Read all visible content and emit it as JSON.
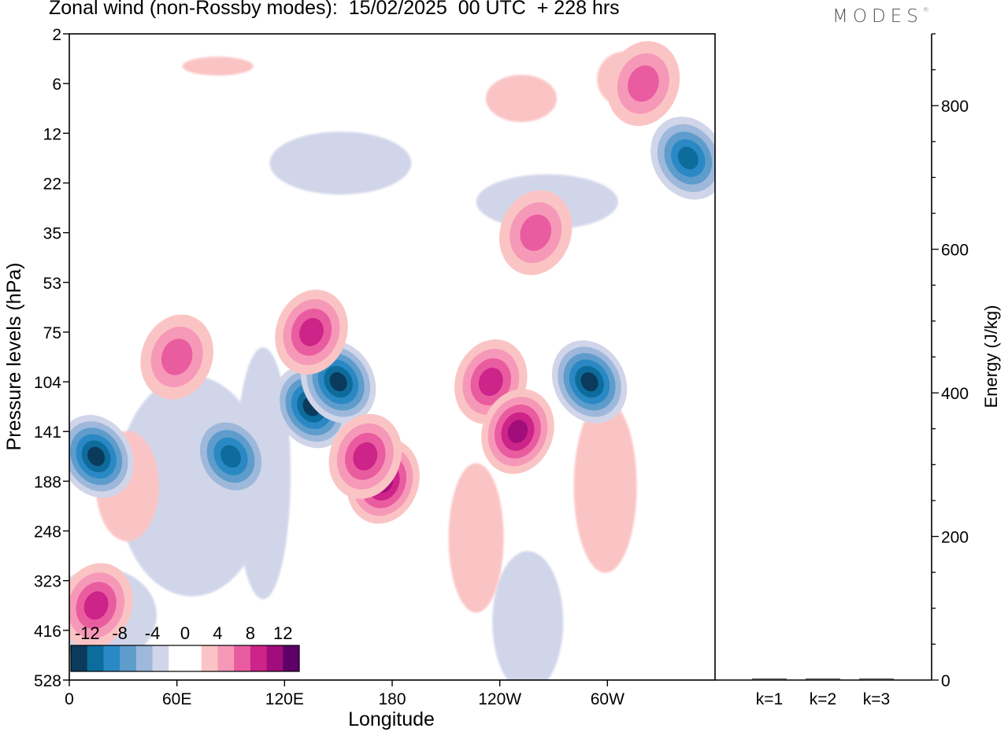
{
  "title": "Zonal wind (non-Rossby modes):  15/02/2025  00 UTC  + 228 hrs",
  "logo": "MODES",
  "left_panel": {
    "ylabel": "Pressure levels (hPa)",
    "xlabel": "Longitude"
  },
  "right_panel": {
    "ylabel": "Energy (J/kg)"
  },
  "colorbar": {
    "labels": [
      "-12",
      "-8",
      "-4",
      "0",
      "4",
      "8",
      "12"
    ],
    "colors": [
      "#0a3a5c",
      "#0e6c9c",
      "#2a89c4",
      "#5e9ccc",
      "#9db8da",
      "#d1d5e9",
      "#ffffff",
      "#ffffff",
      "#fbc4c4",
      "#f699b8",
      "#ea5ca0",
      "#cc2488",
      "#a10d7a",
      "#5e0068"
    ]
  },
  "chart_data": [
    {
      "type": "heatmap",
      "title": "Zonal wind (non-Rossby modes):  15/02/2025  00 UTC  + 228 hrs",
      "xlabel": "Longitude",
      "ylabel": "Pressure levels (hPa)",
      "x_ticks": [
        "0",
        "60E",
        "120E",
        "180",
        "120W",
        "60W"
      ],
      "x_tick_values": [
        0,
        60,
        120,
        180,
        240,
        300
      ],
      "xlim": [
        0,
        360
      ],
      "y_ticks": [
        "2",
        "6",
        "12",
        "22",
        "35",
        "53",
        "75",
        "104",
        "141",
        "188",
        "248",
        "323",
        "416",
        "528"
      ],
      "y_scale": "model levels (top 2 hPa, bottom 528 hPa)",
      "colorbar_levels": [
        -12,
        -8,
        -4,
        0,
        4,
        8,
        12
      ],
      "features": [
        {
          "lon": 15,
          "level": "141-188",
          "value": -12
        },
        {
          "lon": 90,
          "level": "141-188",
          "value": -10
        },
        {
          "lon": 135,
          "level": "104-141",
          "value": -11
        },
        {
          "lon": 150,
          "level": "104",
          "value": -11
        },
        {
          "lon": 175,
          "level": "141-248",
          "value": 9
        },
        {
          "lon": 165,
          "level": "141-188",
          "value": 8
        },
        {
          "lon": 60,
          "level": "75-104",
          "value": 6
        },
        {
          "lon": 135,
          "level": "75",
          "value": 7
        },
        {
          "lon": 235,
          "level": "104",
          "value": 8
        },
        {
          "lon": 250,
          "level": "141",
          "value": 9
        },
        {
          "lon": 290,
          "level": "104",
          "value": -11
        },
        {
          "lon": 345,
          "level": "12-22",
          "value": -9
        },
        {
          "lon": 320,
          "level": "6",
          "value": 6
        },
        {
          "lon": 260,
          "level": "35",
          "value": 6
        },
        {
          "lon": 15,
          "level": "323-416",
          "value": 7
        }
      ]
    },
    {
      "type": "bar",
      "ylabel": "Energy (J/kg)",
      "categories": [
        "k=1",
        "k=2",
        "k=3"
      ],
      "values": [
        2,
        2,
        2
      ],
      "ylim": [
        0,
        900
      ],
      "y_ticks": [
        0,
        200,
        400,
        600,
        800
      ]
    }
  ]
}
